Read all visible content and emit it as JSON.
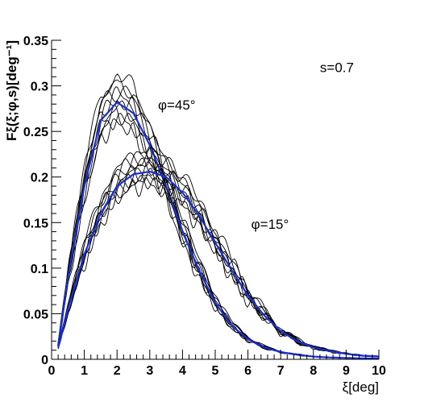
{
  "chart_data": {
    "type": "line",
    "title": "",
    "xlabel": "ξ[deg]",
    "ylabel": "Fξ(ξ;φ,s)[deg⁻¹]",
    "xlim": [
      0,
      10
    ],
    "ylim": [
      0,
      0.35
    ],
    "x_ticks": [
      "0",
      "1",
      "2",
      "3",
      "4",
      "5",
      "6",
      "7",
      "8",
      "9",
      "10"
    ],
    "y_ticks": [
      "0",
      "0.05",
      "0.1",
      "0.15",
      "0.2",
      "0.25",
      "0.3",
      "0.35"
    ],
    "grid": false,
    "annotations": [
      {
        "text": "s=0.7",
        "x": 8.2,
        "y": 0.315
      },
      {
        "text": "φ=45°",
        "x": 3.25,
        "y": 0.274
      },
      {
        "text": "φ=15°",
        "x": 6.1,
        "y": 0.143
      }
    ],
    "series_groups": [
      {
        "id": "phi45",
        "x": [
          0.2,
          0.5,
          1.0,
          1.5,
          2.0,
          2.5,
          3.0,
          3.5,
          4.0,
          4.5,
          5.0,
          5.5,
          6.0,
          6.5,
          7.0,
          7.5,
          8.0,
          8.5,
          9.0,
          9.5,
          10.0
        ],
        "mean": [
          0.015,
          0.09,
          0.19,
          0.262,
          0.282,
          0.27,
          0.235,
          0.19,
          0.14,
          0.098,
          0.062,
          0.037,
          0.022,
          0.013,
          0.008,
          0.005,
          0.003,
          0.002,
          0.0015,
          0.001,
          0.0008
        ],
        "realizations": [
          {
            "peak": 0.311,
            "jitter": 0.012
          },
          {
            "peak": 0.305,
            "jitter": 0.01
          },
          {
            "peak": 0.298,
            "jitter": 0.014
          },
          {
            "peak": 0.292,
            "jitter": 0.011
          },
          {
            "peak": 0.286,
            "jitter": 0.013
          },
          {
            "peak": 0.279,
            "jitter": 0.009
          },
          {
            "peak": 0.272,
            "jitter": 0.012
          },
          {
            "peak": 0.266,
            "jitter": 0.01
          },
          {
            "peak": 0.26,
            "jitter": 0.011
          }
        ]
      },
      {
        "id": "phi15",
        "x": [
          0.2,
          0.5,
          1.0,
          1.5,
          2.0,
          2.5,
          3.0,
          3.5,
          4.0,
          4.5,
          5.0,
          5.5,
          6.0,
          6.5,
          7.0,
          7.5,
          8.0,
          8.5,
          9.0,
          9.5,
          10.0
        ],
        "mean": [
          0.013,
          0.055,
          0.115,
          0.16,
          0.19,
          0.203,
          0.206,
          0.2,
          0.183,
          0.158,
          0.128,
          0.098,
          0.07,
          0.048,
          0.031,
          0.02,
          0.013,
          0.009,
          0.006,
          0.004,
          0.003
        ],
        "realizations": [
          {
            "peak": 0.226,
            "jitter": 0.012
          },
          {
            "peak": 0.222,
            "jitter": 0.01
          },
          {
            "peak": 0.218,
            "jitter": 0.013
          },
          {
            "peak": 0.213,
            "jitter": 0.011
          },
          {
            "peak": 0.209,
            "jitter": 0.012
          },
          {
            "peak": 0.204,
            "jitter": 0.01
          },
          {
            "peak": 0.2,
            "jitter": 0.011
          },
          {
            "peak": 0.196,
            "jitter": 0.009
          },
          {
            "peak": 0.192,
            "jitter": 0.012
          }
        ]
      }
    ],
    "colors": {
      "realization": "#000000",
      "mean": "#1a2fd6",
      "axis": "#000000"
    }
  }
}
